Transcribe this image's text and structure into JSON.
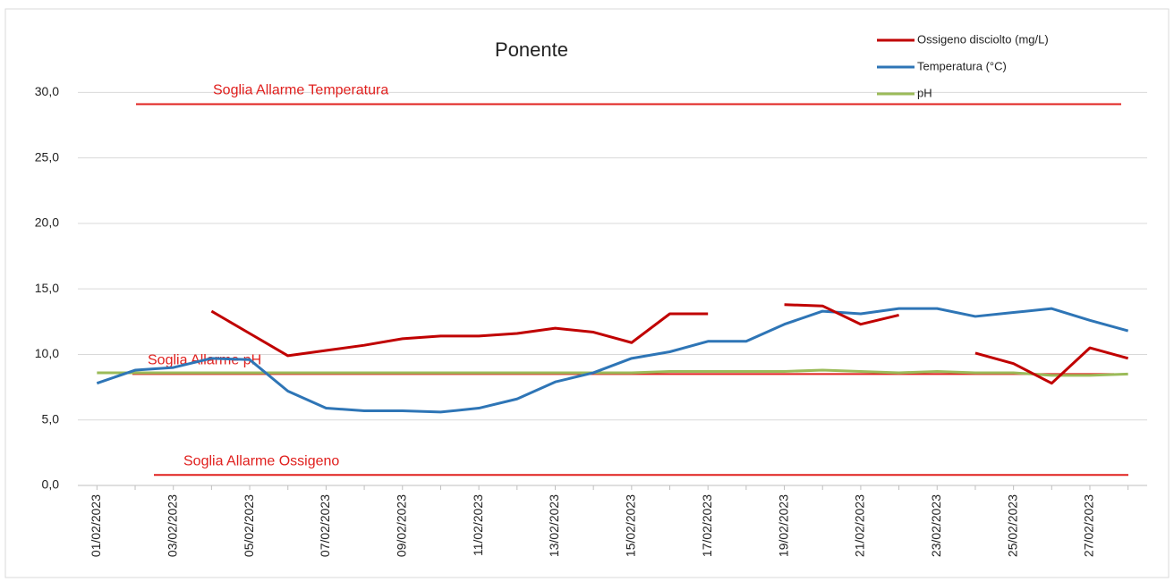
{
  "chart_data": {
    "type": "line",
    "title": "Ponente",
    "categories": [
      "01/02/2023",
      null,
      "03/02/2023",
      null,
      "05/02/2023",
      null,
      "07/02/2023",
      null,
      "09/02/2023",
      null,
      "11/02/2023",
      null,
      "13/02/2023",
      null,
      "15/02/2023",
      null,
      "17/02/2023",
      null,
      "19/02/2023",
      null,
      "21/02/2023",
      null,
      "23/02/2023",
      null,
      "25/02/2023",
      null,
      "27/02/2023",
      null
    ],
    "series": [
      {
        "name": "Ossigeno disciolto (mg/L)",
        "color": "#c00000",
        "values": [
          null,
          null,
          null,
          13.3,
          11.6,
          9.9,
          10.3,
          10.7,
          11.2,
          11.4,
          11.4,
          11.6,
          12.0,
          11.7,
          10.9,
          13.1,
          13.1,
          null,
          13.8,
          13.7,
          12.3,
          13.0,
          null,
          10.1,
          9.3,
          7.8,
          10.5,
          9.7
        ]
      },
      {
        "name": "Temperatura (°C)",
        "color": "#2e75b6",
        "values": [
          7.8,
          8.8,
          9.0,
          9.7,
          9.6,
          7.2,
          5.9,
          5.7,
          5.7,
          5.6,
          5.9,
          6.6,
          7.9,
          8.6,
          9.7,
          10.2,
          11.0,
          11.0,
          12.3,
          13.3,
          13.1,
          13.5,
          13.5,
          12.9,
          13.2,
          13.5,
          12.6,
          11.8
        ]
      },
      {
        "name": "pH",
        "color": "#9bbb59",
        "values": [
          8.6,
          8.6,
          8.6,
          8.6,
          8.6,
          8.6,
          8.6,
          8.6,
          8.6,
          8.6,
          8.6,
          8.6,
          8.6,
          8.6,
          8.6,
          8.7,
          8.7,
          8.7,
          8.7,
          8.8,
          8.7,
          8.6,
          8.7,
          8.6,
          8.6,
          8.4,
          8.4,
          8.5
        ]
      }
    ],
    "thresholds": [
      {
        "label": "Soglia Allarme Temperatura",
        "value": 29.1,
        "color": "#e0201e"
      },
      {
        "label": "Soglia  Allarme pH",
        "value": 8.5,
        "color": "#e0201e"
      },
      {
        "label": "Soglia  Allarme Ossigeno",
        "value": 0.8,
        "color": "#e0201e"
      }
    ],
    "ylim": [
      0,
      32
    ],
    "yticks": [
      {
        "value": 0,
        "label": "0,0"
      },
      {
        "value": 5,
        "label": "5,0"
      },
      {
        "value": 10,
        "label": "10,0"
      },
      {
        "value": 15,
        "label": "15,0"
      },
      {
        "value": 20,
        "label": "20,0"
      },
      {
        "value": 25,
        "label": "25,0"
      },
      {
        "value": 30,
        "label": "30,0"
      }
    ],
    "grid": true,
    "legend": "top-right"
  }
}
